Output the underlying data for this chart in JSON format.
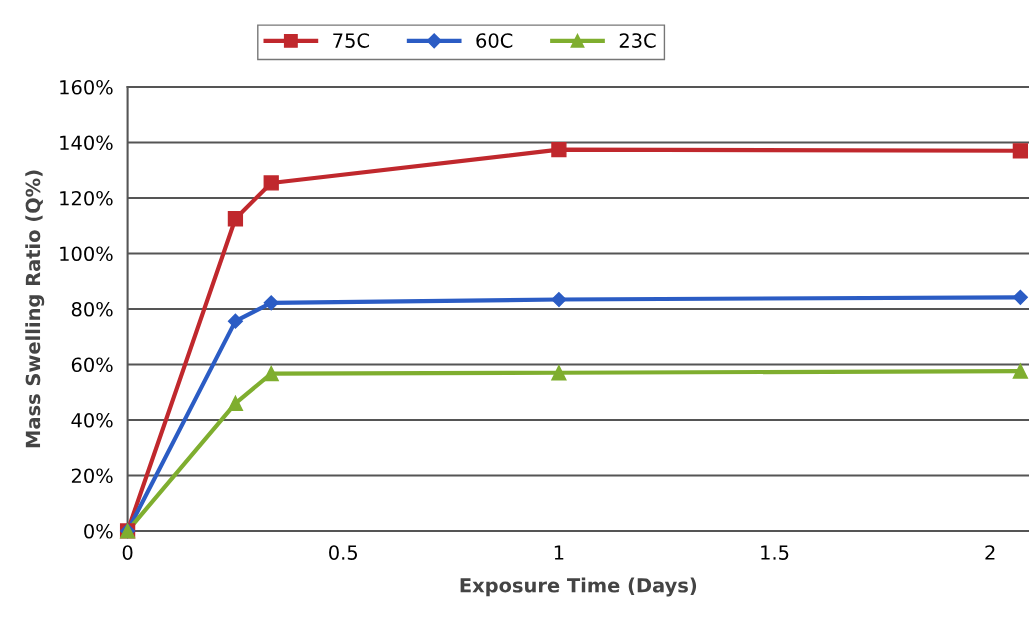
{
  "chart_data": {
    "type": "line",
    "xlabel": "Exposure Time (Days)",
    "ylabel": "Mass Swelling Ratio (Q%)",
    "x": [
      0,
      0.25,
      0.333,
      1,
      2.07
    ],
    "series": [
      {
        "name": "75C",
        "color": "#c0282d",
        "marker": "square",
        "values": [
          0,
          112.5,
          125.4,
          137.4,
          137
        ]
      },
      {
        "name": "60C",
        "color": "#2b5cc4",
        "marker": "diamond",
        "values": [
          0,
          75.6,
          82.2,
          83.4,
          84.2
        ]
      },
      {
        "name": "23C",
        "color": "#7fae2f",
        "marker": "triangle",
        "values": [
          0,
          46,
          56.7,
          57,
          57.6
        ]
      }
    ],
    "xlim": [
      0,
      2.09
    ],
    "xticks": [
      0,
      0.5,
      1,
      1.5,
      2
    ],
    "ylim": [
      0,
      160
    ],
    "yticks": [
      {
        "value": 0,
        "label": "0%"
      },
      {
        "value": 20,
        "label": "20%"
      },
      {
        "value": 40,
        "label": "40%"
      },
      {
        "value": 60,
        "label": "60%"
      },
      {
        "value": 80,
        "label": "80%"
      },
      {
        "value": 100,
        "label": "100%"
      },
      {
        "value": 120,
        "label": "120%"
      },
      {
        "value": 140,
        "label": "140%"
      },
      {
        "value": 160,
        "label": "160%"
      }
    ],
    "grid": "y",
    "legend": "top",
    "line_style": "solid"
  }
}
